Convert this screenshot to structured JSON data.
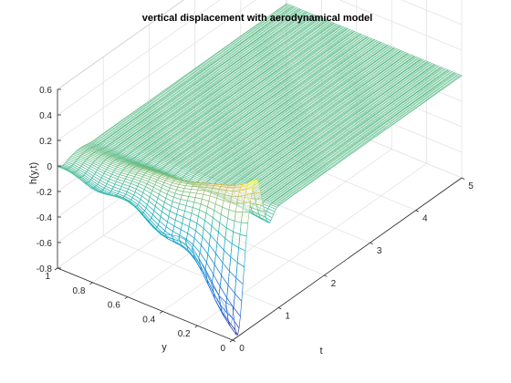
{
  "chart_data": {
    "type": "surface",
    "title": "vertical displacement with aerodynamical model",
    "xlabel": "t",
    "ylabel": "y",
    "zlabel": "h(y,t)",
    "xlim": [
      0,
      5
    ],
    "ylim": [
      0,
      1
    ],
    "zlim": [
      -0.8,
      0.6
    ],
    "xticks": [
      "0",
      "1",
      "2",
      "3",
      "4",
      "5"
    ],
    "yticks": [
      "0",
      "0.2",
      "0.4",
      "0.6",
      "0.8",
      "1"
    ],
    "zticks": [
      "-0.8",
      "-0.6",
      "-0.4",
      "-0.2",
      "0",
      "0.2",
      "0.4",
      "0.6"
    ],
    "grid": true,
    "colormap": "parula",
    "min_displacement": {
      "t": 0.1,
      "y": 0.0,
      "h": -0.78
    },
    "max_displacement": {
      "t": 0.5,
      "y": 0.3,
      "h": 0.27
    },
    "late_time_value": 0.0
  }
}
